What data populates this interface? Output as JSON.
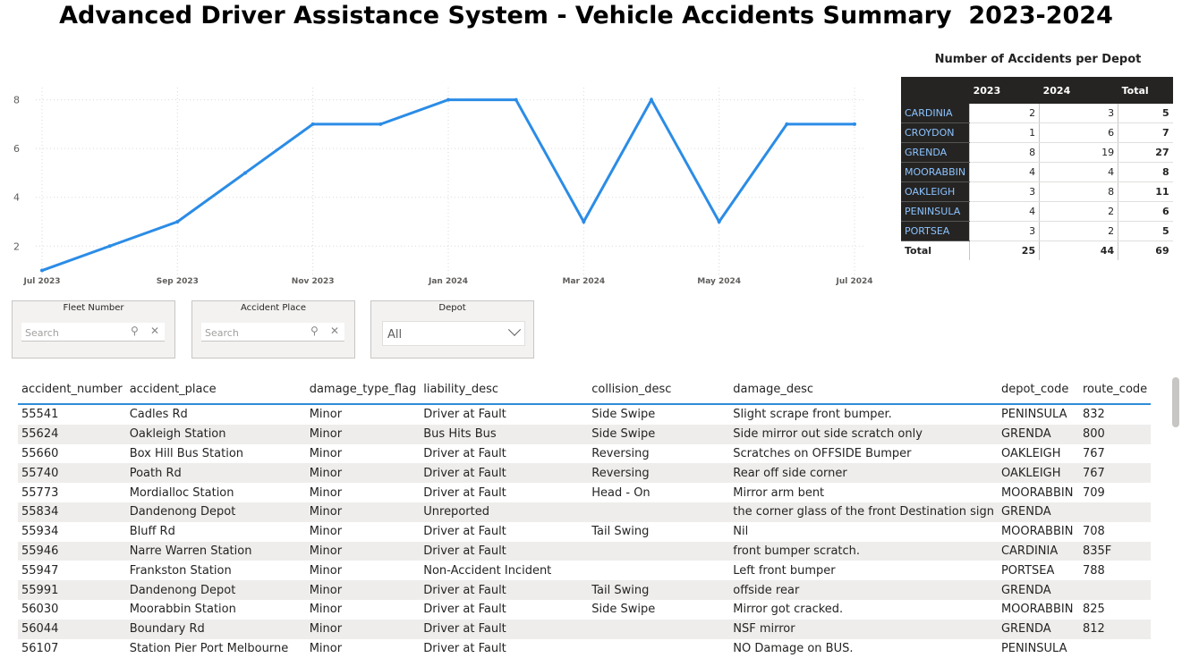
{
  "title": "Advanced Driver Assistance System - Vehicle Accidents Summary  2023-2024",
  "chart_data": {
    "type": "line",
    "x": [
      "Jul 2023",
      "Aug 2023",
      "Sep 2023",
      "Oct 2023",
      "Nov 2023",
      "Dec 2023",
      "Jan 2024",
      "Feb 2024",
      "Mar 2024",
      "Apr 2024",
      "May 2024",
      "Jun 2024",
      "Jul 2024"
    ],
    "values": [
      1,
      2,
      3,
      5,
      7,
      7,
      8,
      8,
      3,
      8,
      3,
      7,
      7
    ],
    "x_tick_labels": [
      "Jul 2023",
      "Sep 2023",
      "Nov 2023",
      "Jan 2024",
      "Mar 2024",
      "May 2024",
      "Jul 2024"
    ],
    "y_tick_labels": [
      "2",
      "4",
      "6",
      "8"
    ],
    "ylim": [
      0.8,
      8.5
    ],
    "grid": true,
    "line_color": "#2b8ce6"
  },
  "depot_table": {
    "title": "Number of Accidents per Depot",
    "columns": [
      "",
      "2023",
      "2024",
      "Total"
    ],
    "rows": [
      {
        "depot": "CARDINIA",
        "y2023": "2",
        "y2024": "3",
        "total": "5"
      },
      {
        "depot": "CROYDON",
        "y2023": "1",
        "y2024": "6",
        "total": "7"
      },
      {
        "depot": "GRENDA",
        "y2023": "8",
        "y2024": "19",
        "total": "27"
      },
      {
        "depot": "MOORABBIN",
        "y2023": "4",
        "y2024": "4",
        "total": "8"
      },
      {
        "depot": "OAKLEIGH",
        "y2023": "3",
        "y2024": "8",
        "total": "11"
      },
      {
        "depot": "PENINSULA",
        "y2023": "4",
        "y2024": "2",
        "total": "6"
      },
      {
        "depot": "PORTSEA",
        "y2023": "3",
        "y2024": "2",
        "total": "5"
      }
    ],
    "total_row": {
      "label": "Total",
      "y2023": "25",
      "y2024": "44",
      "total": "69"
    }
  },
  "slicers": {
    "fleet": {
      "title": "Fleet Number",
      "placeholder": "Search"
    },
    "place": {
      "title": "Accident Place",
      "placeholder": "Search"
    },
    "depot": {
      "title": "Depot",
      "value": "All"
    }
  },
  "accidents": {
    "columns": [
      "accident_number",
      "accident_place",
      "damage_type_flag",
      "liability_desc",
      "collision_desc",
      "damage_desc",
      "depot_code",
      "route_code"
    ],
    "rows": [
      [
        "55541",
        "Cadles Rd",
        "Minor",
        "Driver at Fault",
        "Side Swipe",
        "Slight scrape front bumper.",
        "PENINSULA",
        "832"
      ],
      [
        "55624",
        "Oakleigh Station",
        "Minor",
        "Bus Hits Bus",
        "Side Swipe",
        "Side mirror out side scratch only",
        "GRENDA",
        "800"
      ],
      [
        "55660",
        "Box Hill Bus Station",
        "Minor",
        "Driver at Fault",
        "Reversing",
        "Scratches on OFFSIDE Bumper",
        "OAKLEIGH",
        "767"
      ],
      [
        "55740",
        "Poath Rd",
        "Minor",
        "Driver at Fault",
        "Reversing",
        "Rear off side corner",
        "OAKLEIGH",
        "767"
      ],
      [
        "55773",
        "Mordialloc Station",
        "Minor",
        "Driver at Fault",
        "Head - On",
        "Mirror arm bent",
        "MOORABBIN",
        "709"
      ],
      [
        "55834",
        "Dandenong Depot",
        "Minor",
        "Unreported",
        "",
        "the corner glass of the front Destination sign",
        "GRENDA",
        ""
      ],
      [
        "55934",
        "Bluff Rd",
        "Minor",
        "Driver at Fault",
        "Tail Swing",
        "Nil",
        "MOORABBIN",
        "708"
      ],
      [
        "55946",
        "Narre Warren Station",
        "Minor",
        "Driver at Fault",
        "",
        "front bumper scratch.",
        "CARDINIA",
        "835F"
      ],
      [
        "55947",
        "Frankston Station",
        "Minor",
        "Non-Accident Incident",
        "",
        "Left front bumper",
        "PORTSEA",
        "788"
      ],
      [
        "55991",
        "Dandenong Depot",
        "Minor",
        "Driver at Fault",
        "Tail Swing",
        "offside rear",
        "GRENDA",
        ""
      ],
      [
        "56030",
        "Moorabbin Station",
        "Minor",
        "Driver at Fault",
        "Side Swipe",
        "Mirror got cracked.",
        "MOORABBIN",
        "825"
      ],
      [
        "56044",
        "Boundary Rd",
        "Minor",
        "Driver at Fault",
        "",
        "NSF mirror",
        "GRENDA",
        "812"
      ],
      [
        "56107",
        "Station Pier Port Melbourne",
        "Minor",
        "Driver at Fault",
        "",
        "NO Damage on BUS.",
        "PENINSULA",
        ""
      ]
    ]
  }
}
